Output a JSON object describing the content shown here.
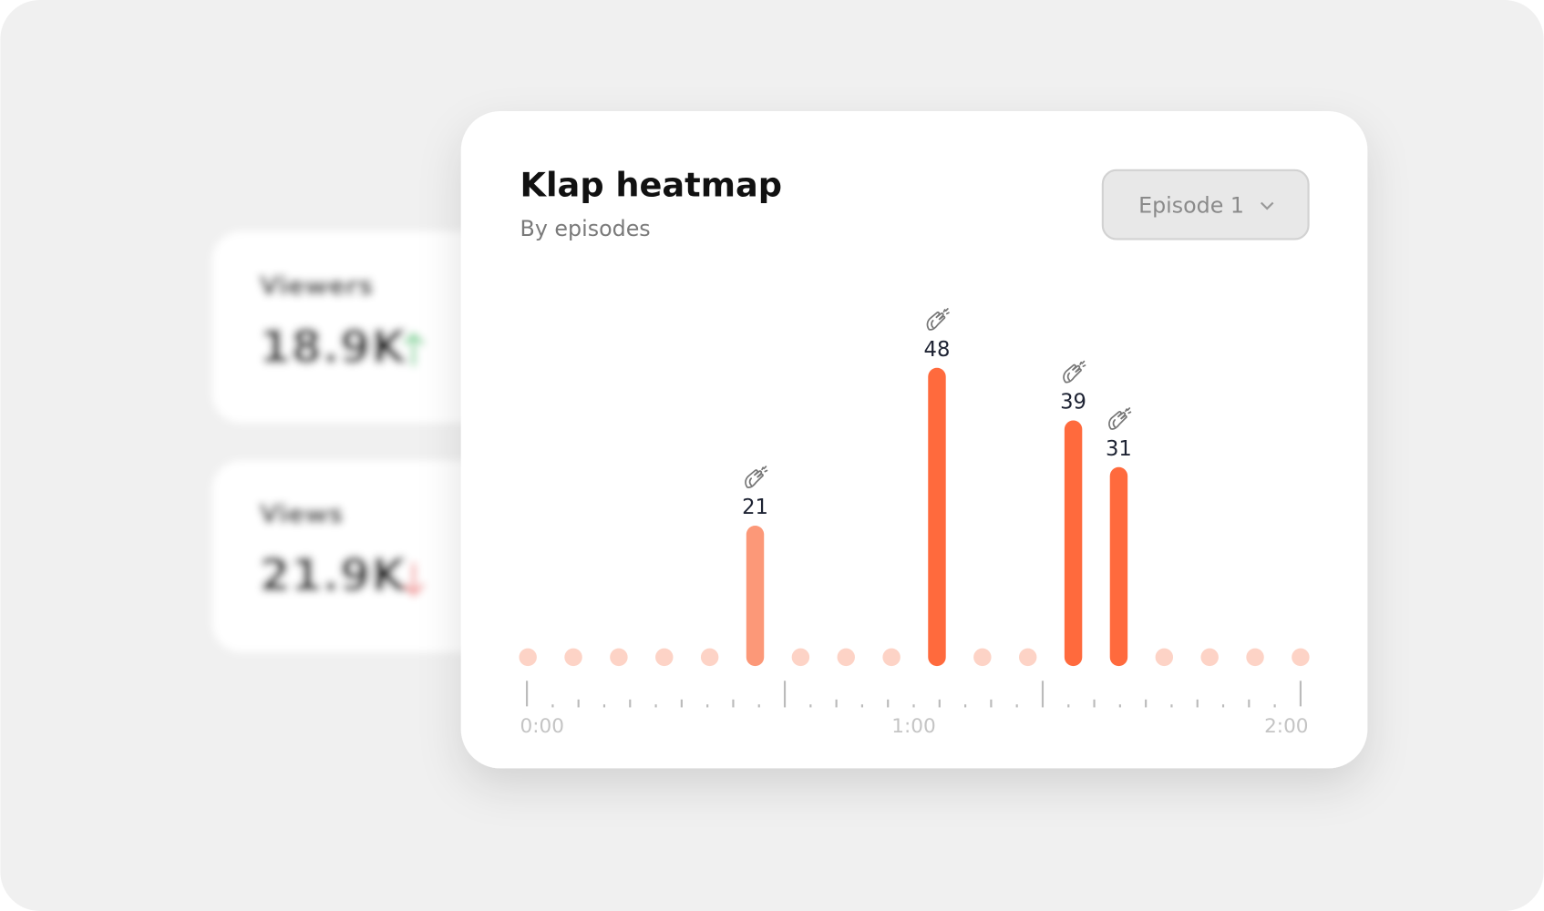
{
  "background_cards": [
    {
      "label": "Viewers",
      "value": "18.9K"
    },
    {
      "label": "Views",
      "value": "21.9K"
    }
  ],
  "dropdown": {
    "label": "Episode 1"
  },
  "chart_data": {
    "type": "bar",
    "title": "Klap heatmap",
    "subtitle": "By episodes",
    "categories": [
      null,
      null,
      null,
      null,
      null,
      null,
      null,
      null,
      null,
      null,
      null,
      null,
      null,
      null,
      null,
      null,
      null,
      null
    ],
    "values": [
      0,
      0,
      0,
      0,
      0,
      21,
      0,
      0,
      0,
      48,
      0,
      0,
      39,
      31,
      0,
      0,
      0,
      0
    ],
    "colors": [
      "#fdd3c6",
      "#fdd3c6",
      "#fdd3c6",
      "#fdd3c6",
      "#fdd3c6",
      "#fc9878",
      "#fdd3c6",
      "#fdd3c6",
      "#fdd3c6",
      "#ff6a3d",
      "#fdd3c6",
      "#fdd3c6",
      "#ff6a3d",
      "#ff6a3d",
      "#fdd3c6",
      "#fdd3c6",
      "#fdd3c6",
      "#fdd3c6"
    ],
    "ylim": [
      0,
      50
    ],
    "xlim": [
      0,
      120
    ],
    "xticks": [
      {
        "value": 0,
        "label": "0:00"
      },
      {
        "value": 60,
        "label": "1:00"
      },
      {
        "value": 120,
        "label": "2:00"
      }
    ]
  }
}
